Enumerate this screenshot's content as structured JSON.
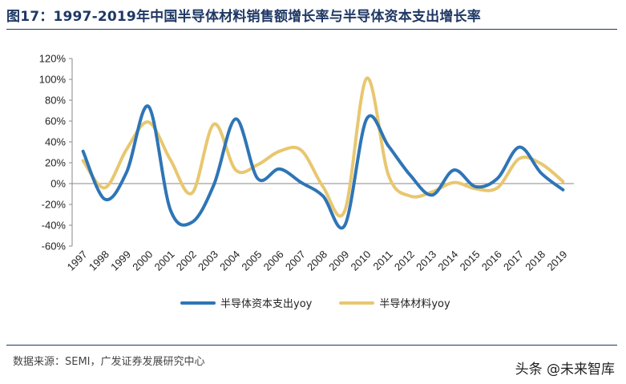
{
  "title": "图17：1997-2019年中国半导体材料销售额增长率与半导体资本支出增长率",
  "source": "数据来源：SEMI，广发证券发展研究中心",
  "watermark": "头条 @未来智库",
  "chart_data": {
    "type": "line",
    "x": [
      "1997",
      "1998",
      "1999",
      "2000",
      "2001",
      "2002",
      "2003",
      "2004",
      "2005",
      "2006",
      "2007",
      "2008",
      "2009",
      "2010",
      "2011",
      "2012",
      "2013",
      "2014",
      "2015",
      "2016",
      "2017",
      "2018",
      "2019"
    ],
    "y_ticks": [
      "120%",
      "100%",
      "80%",
      "60%",
      "40%",
      "20%",
      "0%",
      "-20%",
      "-40%",
      "-60%"
    ],
    "ylim": [
      -60,
      120
    ],
    "y_unit": "%",
    "grid": false,
    "legend_position": "bottom",
    "series": [
      {
        "name": "半导体资本支出yoy",
        "color": "#2e75b6",
        "values": [
          31,
          -15,
          11,
          74,
          -25,
          -37,
          -1,
          62,
          5,
          14,
          1,
          -12,
          -40,
          62,
          36,
          8,
          -11,
          13,
          -3,
          5,
          35,
          10,
          -6
        ]
      },
      {
        "name": "半导体材料yoy",
        "color": "#e8c770",
        "values": [
          22,
          -4,
          33,
          59,
          23,
          -9,
          57,
          13,
          18,
          31,
          32,
          -3,
          -26,
          101,
          8,
          -12,
          -8,
          1,
          -5,
          -4,
          24,
          19,
          2
        ]
      }
    ]
  }
}
